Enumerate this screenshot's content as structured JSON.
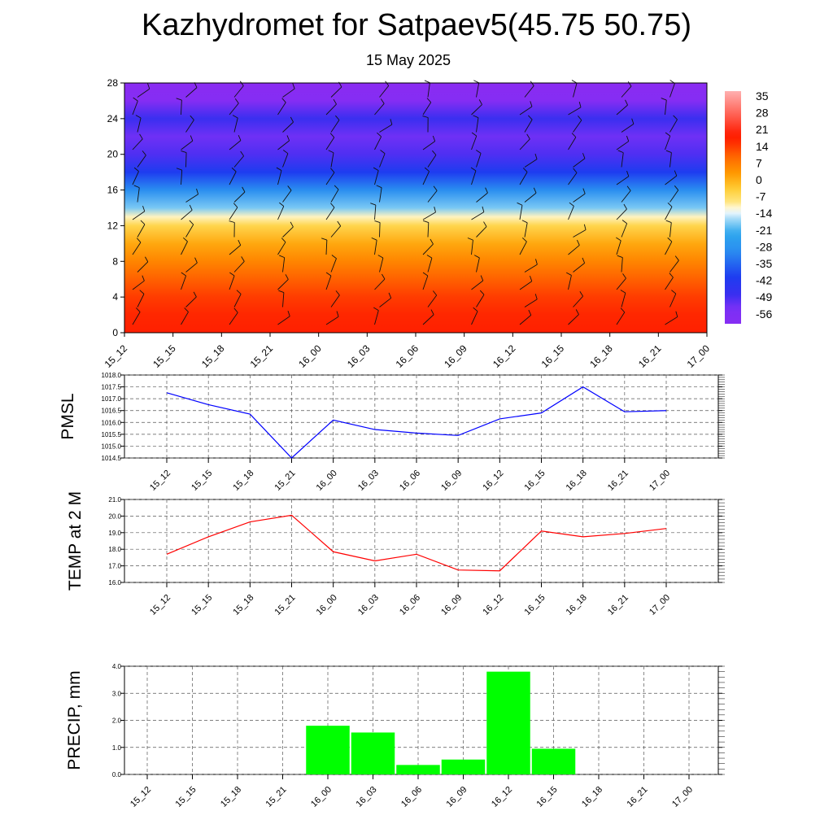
{
  "title": "Kazhydromet for Satpaev5(45.75 50.75)",
  "subtitle": "15 May 2025",
  "time_labels": [
    "15_12",
    "15_15",
    "15_18",
    "15_21",
    "16_00",
    "16_03",
    "16_06",
    "16_09",
    "16_12",
    "16_15",
    "16_18",
    "16_21",
    "17_00"
  ],
  "chart_data": [
    {
      "type": "heatmap",
      "yticks": [
        0,
        4,
        8,
        12,
        16,
        20,
        24,
        28
      ],
      "ylim": [
        0,
        28
      ],
      "colorbar_labels": [
        "35",
        "28",
        "21",
        "14",
        "7",
        "0",
        "-7",
        "-14",
        "-21",
        "-28",
        "-35",
        "-42",
        "-49",
        "-56"
      ],
      "colorbar_range": [
        -63,
        42
      ],
      "values_by_level": {
        "levels": [
          0,
          2,
          4,
          6,
          8,
          10,
          12,
          13,
          14,
          16,
          18,
          20,
          22,
          24,
          26,
          28
        ],
        "temperature": [
          21,
          20,
          17,
          13,
          8,
          3,
          -4,
          -10,
          -18,
          -30,
          -42,
          -52,
          -55,
          -50,
          -62,
          -65
        ]
      },
      "colors": {
        "hot": "#ff1a00",
        "orange": "#ff9900",
        "yellow": "#ffe680",
        "light_blue": "#9ed8f7",
        "cyan": "#2fa8ee",
        "blue": "#1e3cf0",
        "purple": "#8a2cf2"
      },
      "overlay": "wind barbs"
    },
    {
      "type": "line",
      "ylabel": "PMSL",
      "ylim": [
        1014.5,
        1018.0
      ],
      "yticks": [
        "1014.5",
        "1015.0",
        "1015.5",
        "1016.0",
        "1016.5",
        "1017.0",
        "1017.5",
        "1018.0"
      ],
      "grid": true,
      "series": [
        {
          "values": [
            1017.25,
            1016.75,
            1016.35,
            1014.5,
            1016.1,
            1015.7,
            1015.55,
            1015.45,
            1016.15,
            1016.4,
            1017.5,
            1016.45,
            1016.5
          ],
          "color": "#0000ff"
        }
      ]
    },
    {
      "type": "line",
      "ylabel": "TEMP at 2 M",
      "ylim": [
        16.0,
        21.0
      ],
      "yticks": [
        "16.0",
        "17.0",
        "18.0",
        "19.0",
        "20.0",
        "21.0"
      ],
      "grid": true,
      "series": [
        {
          "values": [
            17.7,
            18.75,
            19.65,
            20.05,
            17.85,
            17.3,
            17.7,
            16.75,
            16.7,
            19.1,
            18.75,
            18.95,
            19.25
          ],
          "color": "#ff0000"
        }
      ]
    },
    {
      "type": "bar",
      "ylabel": "PRECIP, mm",
      "ylim": [
        0.0,
        4.0
      ],
      "yticks": [
        "0.0",
        "1.0",
        "2.0",
        "3.0",
        "4.0"
      ],
      "grid": true,
      "values": [
        0,
        0,
        0,
        0,
        1.8,
        1.55,
        0.35,
        0.55,
        3.8,
        0.95,
        0,
        0,
        0
      ],
      "color": "#00ff00"
    }
  ]
}
